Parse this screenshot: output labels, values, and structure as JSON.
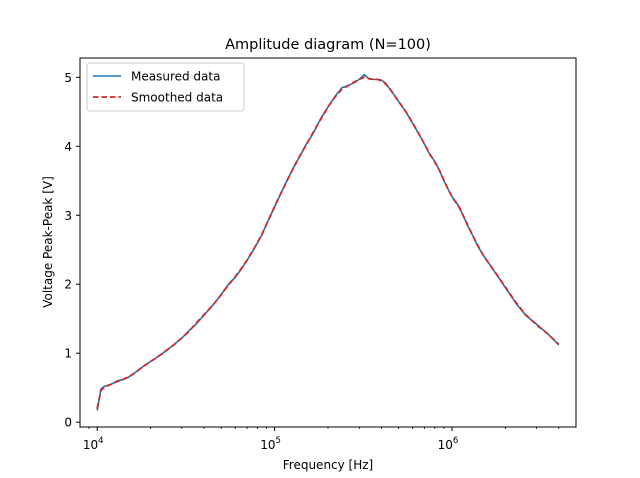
{
  "chart_data": {
    "type": "line",
    "title": "Amplitude diagram (N=100)",
    "xlabel": "Frequency [Hz]",
    "ylabel": "Voltage Peak-Peak [V]",
    "xscale": "log",
    "xlim": [
      8000,
      5000000
    ],
    "ylim": [
      -0.07,
      5.28
    ],
    "xticks": [
      {
        "value": 10000,
        "base": "10",
        "exp": "4"
      },
      {
        "value": 100000,
        "base": "10",
        "exp": "5"
      },
      {
        "value": 1000000,
        "base": "10",
        "exp": "6"
      }
    ],
    "yticks": [
      {
        "value": 0,
        "label": "0"
      },
      {
        "value": 1,
        "label": "1"
      },
      {
        "value": 2,
        "label": "2"
      },
      {
        "value": 3,
        "label": "3"
      },
      {
        "value": 4,
        "label": "4"
      },
      {
        "value": 5,
        "label": "5"
      }
    ],
    "grid": false,
    "legend_position": "top-left",
    "series": [
      {
        "name": "Measured data",
        "color": "#1f77b4",
        "style": "solid",
        "x": [
          10000,
          10500,
          11000,
          12000,
          13000,
          14000,
          15000,
          16000,
          17000,
          18000,
          20000,
          22000,
          24000,
          27000,
          30000,
          33000,
          36000,
          40000,
          45000,
          50000,
          55000,
          60000,
          65000,
          70000,
          75000,
          80000,
          85000,
          90000,
          95000,
          100000,
          110000,
          120000,
          130000,
          140000,
          150000,
          160000,
          170000,
          180000,
          190000,
          200000,
          220000,
          240000,
          260000,
          280000,
          300000,
          320000,
          340000,
          360000,
          380000,
          400000,
          420000,
          450000,
          500000,
          550000,
          600000,
          650000,
          700000,
          750000,
          800000,
          850000,
          900000,
          950000,
          1000000,
          1100000,
          1200000,
          1300000,
          1400000,
          1500000,
          1700000,
          2000000,
          2300000,
          2600000,
          3000000,
          3500000,
          4000000
        ],
        "y": [
          0.17,
          0.48,
          0.52,
          0.55,
          0.6,
          0.62,
          0.65,
          0.7,
          0.75,
          0.8,
          0.88,
          0.95,
          1.02,
          1.12,
          1.22,
          1.33,
          1.42,
          1.55,
          1.7,
          1.85,
          2.0,
          2.1,
          2.22,
          2.35,
          2.47,
          2.6,
          2.72,
          2.87,
          3.0,
          3.12,
          3.35,
          3.55,
          3.73,
          3.87,
          4.02,
          4.13,
          4.25,
          4.38,
          4.48,
          4.57,
          4.73,
          4.85,
          4.88,
          4.92,
          4.97,
          5.04,
          4.98,
          4.97,
          4.97,
          4.96,
          4.92,
          4.82,
          4.65,
          4.5,
          4.33,
          4.18,
          4.03,
          3.88,
          3.78,
          3.65,
          3.5,
          3.38,
          3.27,
          3.12,
          2.9,
          2.72,
          2.55,
          2.42,
          2.22,
          1.95,
          1.72,
          1.55,
          1.42,
          1.27,
          1.12
        ]
      },
      {
        "name": "Smoothed data",
        "color": "#d62728",
        "style": "dashed",
        "x": [
          10000,
          10500,
          11000,
          12000,
          13000,
          14000,
          15000,
          16000,
          17000,
          18000,
          20000,
          22000,
          24000,
          27000,
          30000,
          33000,
          36000,
          40000,
          45000,
          50000,
          55000,
          60000,
          65000,
          70000,
          75000,
          80000,
          85000,
          90000,
          95000,
          100000,
          110000,
          120000,
          130000,
          140000,
          150000,
          160000,
          170000,
          180000,
          190000,
          200000,
          220000,
          240000,
          260000,
          280000,
          300000,
          320000,
          340000,
          360000,
          380000,
          400000,
          420000,
          450000,
          500000,
          550000,
          600000,
          650000,
          700000,
          750000,
          800000,
          850000,
          900000,
          950000,
          1000000,
          1100000,
          1200000,
          1300000,
          1400000,
          1500000,
          1700000,
          2000000,
          2300000,
          2600000,
          3000000,
          3500000,
          4000000
        ],
        "y": [
          0.2,
          0.46,
          0.51,
          0.55,
          0.59,
          0.62,
          0.66,
          0.7,
          0.75,
          0.8,
          0.88,
          0.95,
          1.02,
          1.12,
          1.22,
          1.32,
          1.43,
          1.56,
          1.7,
          1.85,
          1.99,
          2.11,
          2.23,
          2.35,
          2.48,
          2.6,
          2.73,
          2.87,
          3.0,
          3.13,
          3.35,
          3.55,
          3.72,
          3.88,
          4.01,
          4.14,
          4.26,
          4.37,
          4.47,
          4.57,
          4.72,
          4.83,
          4.88,
          4.93,
          4.97,
          5.0,
          4.98,
          4.97,
          4.97,
          4.95,
          4.91,
          4.82,
          4.65,
          4.5,
          4.34,
          4.18,
          4.03,
          3.89,
          3.77,
          3.65,
          3.51,
          3.38,
          3.27,
          3.11,
          2.91,
          2.72,
          2.56,
          2.42,
          2.22,
          1.96,
          1.73,
          1.56,
          1.41,
          1.27,
          1.13
        ]
      }
    ]
  }
}
